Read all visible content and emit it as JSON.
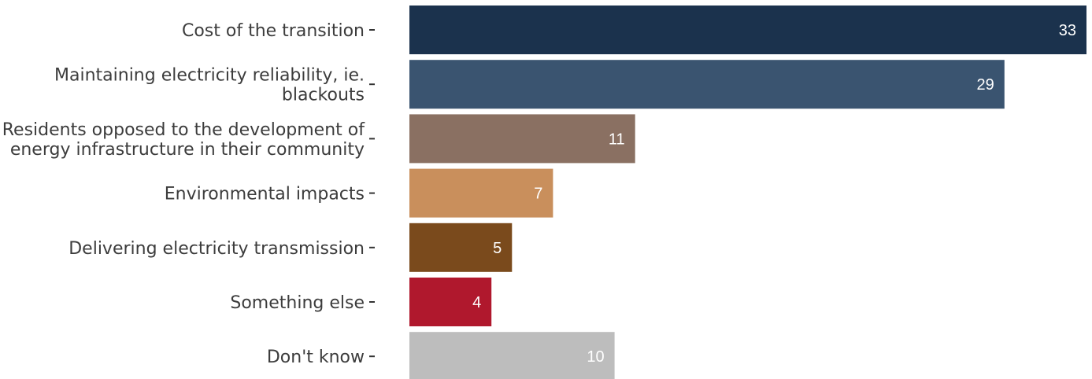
{
  "chart_data": {
    "type": "bar",
    "orientation": "horizontal",
    "categories": [
      [
        "Cost of the transition"
      ],
      [
        "Maintaining electricity reliability, ie.",
        "blackouts"
      ],
      [
        "Residents opposed to the development of",
        "energy infrastructure in their community"
      ],
      [
        "Environmental impacts"
      ],
      [
        "Delivering electricity transmission"
      ],
      [
        "Something else"
      ],
      [
        "Don't know"
      ]
    ],
    "values": [
      33,
      29,
      11,
      7,
      5,
      4,
      10
    ],
    "colors": [
      "#1b324d",
      "#3a5470",
      "#8a7062",
      "#c98f5c",
      "#7a4a1c",
      "#b0182d",
      "#bdbdbd"
    ],
    "value_labels": [
      "33",
      "29",
      "11",
      "7",
      "5",
      "4",
      "10"
    ],
    "title": "",
    "xlabel": "",
    "ylabel": "",
    "xlim": [
      0,
      33
    ],
    "grid": false,
    "legend": "none"
  }
}
